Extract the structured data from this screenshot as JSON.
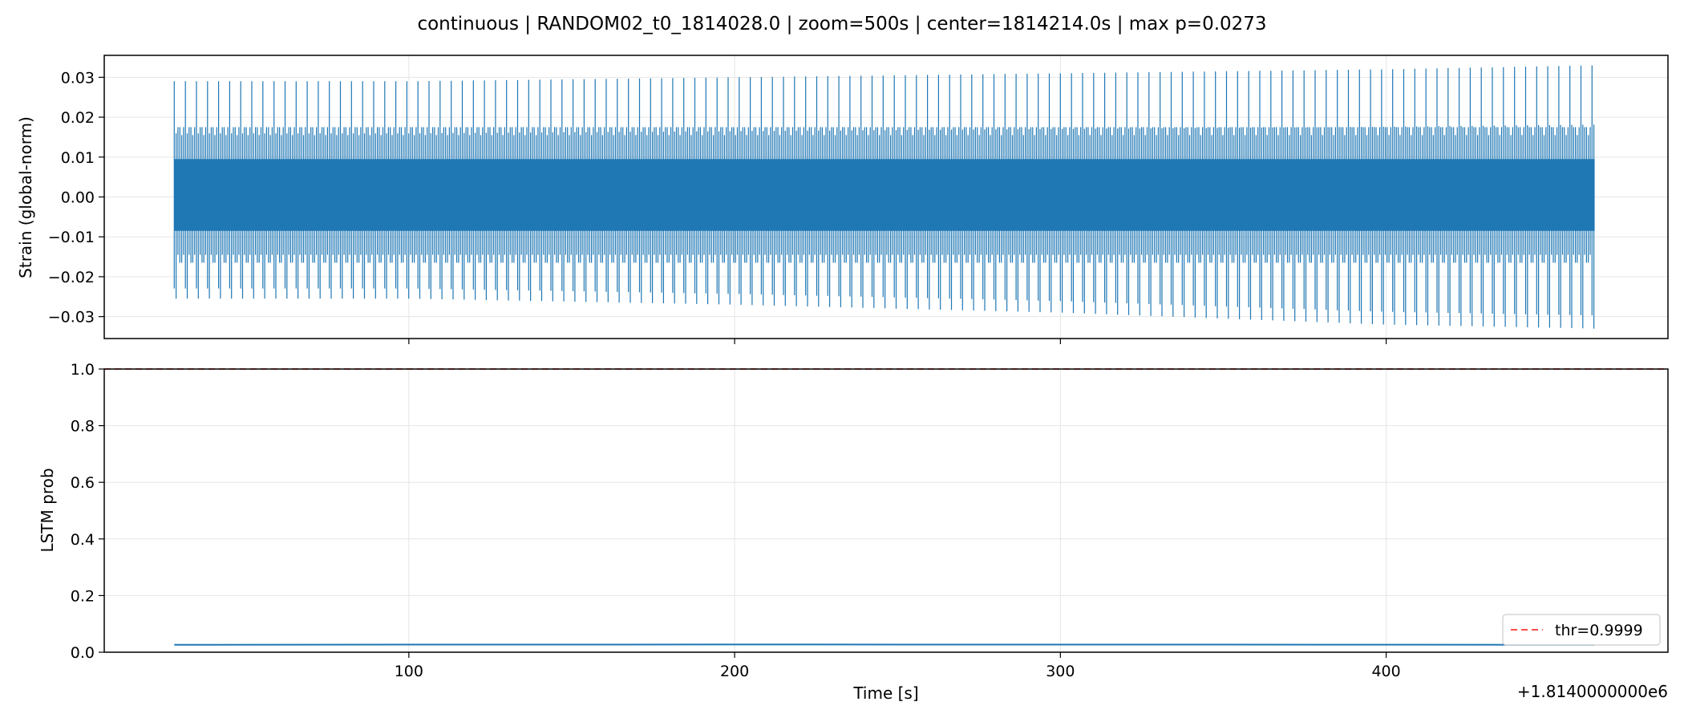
{
  "figure": {
    "title": "continuous | RANDOM02_t0_1814028.0 | zoom=500s | center=1814214.0s | max p=0.0273",
    "x_offset_label": "+1.8140000000e6",
    "xlabel": "Time [s]"
  },
  "colors": {
    "series": "#1f77b4",
    "threshold": "#ff4d4d",
    "grid": "#e6e6e6"
  },
  "chart_data": [
    {
      "type": "line",
      "name": "strain-panel",
      "title": "",
      "xlabel": "",
      "ylabel": "Strain (global-norm)",
      "xlim": [
        6.5,
        486.5
      ],
      "ylim": [
        -0.0355,
        0.0355
      ],
      "grid": true,
      "x_ticks": [
        100,
        200,
        300,
        400
      ],
      "y_ticks": [
        -0.03,
        -0.02,
        -0.01,
        0.0,
        0.01,
        0.02,
        0.03
      ],
      "y_tick_labels": [
        "−0.03",
        "−0.02",
        "−0.01",
        "0.00",
        "0.01",
        "0.02",
        "0.03"
      ],
      "series": [
        {
          "x_range": [
            28.0,
            464.0
          ],
          "core_band": [
            -0.0085,
            0.0095
          ],
          "burst_period_s": 3.4,
          "peak_envelope": {
            "x": [
              28,
              100,
              200,
              300,
              400,
              464
            ],
            "upper": [
              0.029,
              0.029,
              0.03,
              0.031,
              0.032,
              0.033
            ],
            "lower": [
              -0.0255,
              -0.0255,
              -0.027,
              -0.029,
              -0.032,
              -0.033
            ]
          }
        }
      ]
    },
    {
      "type": "line",
      "name": "probability-panel",
      "title": "",
      "xlabel": "Time [s]",
      "ylabel": "LSTM prob",
      "xlim": [
        6.5,
        486.5
      ],
      "ylim": [
        0.0,
        1.0
      ],
      "grid": true,
      "legend": "lower-right",
      "x_ticks": [
        100,
        200,
        300,
        400
      ],
      "x_tick_labels": [
        "100",
        "200",
        "300",
        "400"
      ],
      "y_ticks": [
        0.0,
        0.2,
        0.4,
        0.6,
        0.8,
        1.0
      ],
      "y_tick_labels": [
        "0.0",
        "0.2",
        "0.4",
        "0.6",
        "0.8",
        "1.0"
      ],
      "series": [
        {
          "x": [
            28,
            100,
            200,
            300,
            400,
            464
          ],
          "y": [
            0.026,
            0.027,
            0.0273,
            0.027,
            0.0265,
            0.026
          ]
        }
      ],
      "threshold": {
        "value": 0.9999,
        "label": "thr=0.9999"
      }
    }
  ]
}
